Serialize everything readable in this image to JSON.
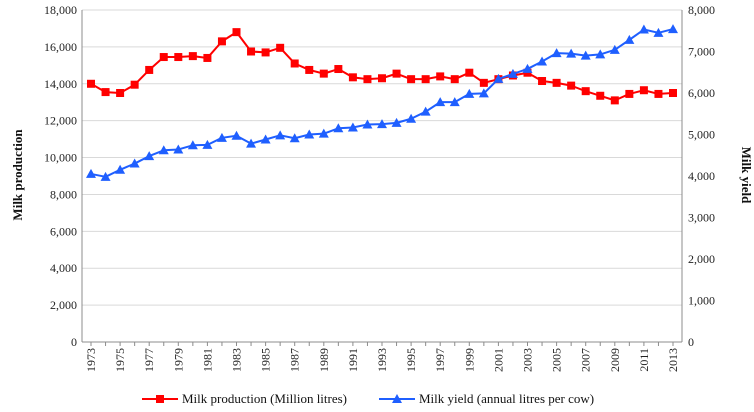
{
  "chart_data": {
    "type": "line",
    "x": [
      1973,
      1974,
      1975,
      1976,
      1977,
      1978,
      1979,
      1980,
      1981,
      1982,
      1983,
      1984,
      1985,
      1986,
      1987,
      1988,
      1989,
      1990,
      1991,
      1992,
      1993,
      1994,
      1995,
      1996,
      1997,
      1998,
      1999,
      2000,
      2001,
      2002,
      2003,
      2004,
      2005,
      2006,
      2007,
      2008,
      2009,
      2010,
      2011,
      2012,
      2013
    ],
    "x_tick_labels": [
      "1973",
      "1975",
      "1977",
      "1979",
      "1981",
      "1983",
      "1985",
      "1987",
      "1989",
      "1991",
      "1993",
      "1995",
      "1997",
      "1999",
      "2001",
      "2003",
      "2005",
      "2007",
      "2009",
      "2011",
      "2013"
    ],
    "series": [
      {
        "name": "Milk production (Million litres)",
        "axis": "left",
        "color": "#ff0000",
        "marker": "square",
        "values": [
          14000,
          13550,
          13500,
          13950,
          14750,
          15450,
          15450,
          15500,
          15400,
          16300,
          16800,
          15750,
          15700,
          15950,
          15100,
          14750,
          14550,
          14800,
          14350,
          14250,
          14300,
          14550,
          14250,
          14250,
          14400,
          14250,
          14600,
          14050,
          14250,
          14450,
          14600,
          14150,
          14050,
          13900,
          13600,
          13350,
          13100,
          13450,
          13650,
          13450,
          13500
        ]
      },
      {
        "name": "Milk yield (annual litres per cow)",
        "axis": "right",
        "color": "#1f5fff",
        "marker": "triangle",
        "values": [
          4050,
          3980,
          4150,
          4300,
          4480,
          4620,
          4640,
          4740,
          4750,
          4920,
          4970,
          4780,
          4880,
          4980,
          4910,
          5000,
          5020,
          5150,
          5170,
          5240,
          5250,
          5280,
          5380,
          5550,
          5780,
          5780,
          5980,
          5990,
          6340,
          6460,
          6580,
          6760,
          6960,
          6950,
          6900,
          6930,
          7040,
          7280,
          7530,
          7450,
          7540
        ]
      }
    ],
    "ylabel": "Milk production",
    "ylabel_right": "Milk yield",
    "ylim": [
      0,
      18000
    ],
    "ylim_right": [
      0,
      8000
    ],
    "y_ticks": [
      "0",
      "2,000",
      "4,000",
      "6,000",
      "8,000",
      "10,000",
      "12,000",
      "14,000",
      "16,000",
      "18,000"
    ],
    "y_ticks_right": [
      "0",
      "1,000",
      "2,000",
      "3,000",
      "4,000",
      "5,000",
      "6,000",
      "7,000",
      "8,000"
    ],
    "grid": true,
    "legend_position": "bottom"
  }
}
